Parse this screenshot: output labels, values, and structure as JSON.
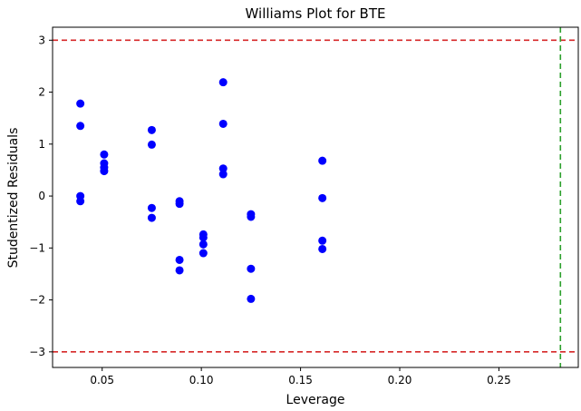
{
  "chart_data": {
    "type": "scatter",
    "title": "Williams Plot for BTE",
    "xlabel": "Leverage",
    "ylabel": "Studentized Residuals",
    "xlim": [
      0.025,
      0.29
    ],
    "ylim": [
      -3.3,
      3.25
    ],
    "xticks": [
      0.05,
      0.1,
      0.15,
      0.2,
      0.25
    ],
    "xtick_labels": [
      "0.05",
      "0.10",
      "0.15",
      "0.20",
      "0.25"
    ],
    "yticks": [
      -3,
      -2,
      -1,
      0,
      1,
      2,
      3
    ],
    "ytick_labels": [
      "−3",
      "−2",
      "−1",
      "0",
      "1",
      "2",
      "3"
    ],
    "grid": false,
    "series": [
      {
        "color": "#0000ff",
        "points": [
          {
            "x": 0.039,
            "y": 1.78
          },
          {
            "x": 0.039,
            "y": 1.35
          },
          {
            "x": 0.039,
            "y": 0.0
          },
          {
            "x": 0.039,
            "y": -0.1
          },
          {
            "x": 0.051,
            "y": 0.8
          },
          {
            "x": 0.051,
            "y": 0.63
          },
          {
            "x": 0.051,
            "y": 0.55
          },
          {
            "x": 0.051,
            "y": 0.48
          },
          {
            "x": 0.075,
            "y": 1.27
          },
          {
            "x": 0.075,
            "y": 0.99
          },
          {
            "x": 0.075,
            "y": -0.23
          },
          {
            "x": 0.075,
            "y": -0.42
          },
          {
            "x": 0.089,
            "y": -0.1
          },
          {
            "x": 0.089,
            "y": -0.15
          },
          {
            "x": 0.089,
            "y": -1.23
          },
          {
            "x": 0.089,
            "y": -1.43
          },
          {
            "x": 0.101,
            "y": -0.74
          },
          {
            "x": 0.101,
            "y": -0.8
          },
          {
            "x": 0.101,
            "y": -0.93
          },
          {
            "x": 0.101,
            "y": -1.1
          },
          {
            "x": 0.111,
            "y": 2.19
          },
          {
            "x": 0.111,
            "y": 1.39
          },
          {
            "x": 0.111,
            "y": 0.53
          },
          {
            "x": 0.111,
            "y": 0.42
          },
          {
            "x": 0.125,
            "y": -0.35
          },
          {
            "x": 0.125,
            "y": -0.4
          },
          {
            "x": 0.125,
            "y": -1.4
          },
          {
            "x": 0.125,
            "y": -1.98
          },
          {
            "x": 0.161,
            "y": 0.68
          },
          {
            "x": 0.161,
            "y": -0.04
          },
          {
            "x": 0.161,
            "y": -0.86
          },
          {
            "x": 0.161,
            "y": -1.02
          }
        ]
      }
    ],
    "reference_lines": [
      {
        "orientation": "horizontal",
        "value": 3,
        "color": "#d62728",
        "style": "dashed"
      },
      {
        "orientation": "horizontal",
        "value": -3,
        "color": "#d62728",
        "style": "dashed"
      },
      {
        "orientation": "vertical",
        "value": 0.281,
        "color": "#2ca02c",
        "style": "dashed"
      }
    ]
  }
}
